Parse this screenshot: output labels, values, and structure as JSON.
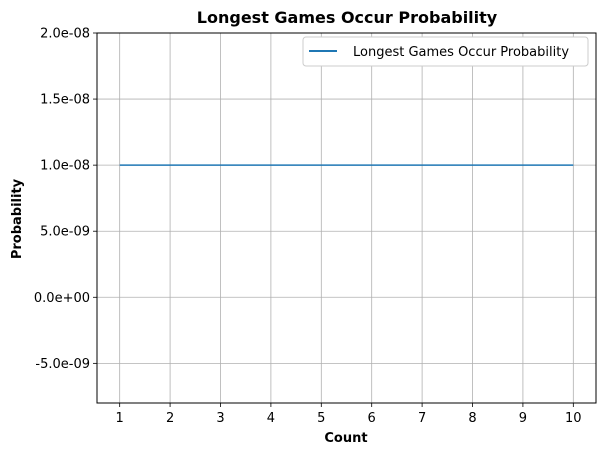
{
  "chart_data": {
    "type": "line",
    "title": "Longest Games Occur Probability",
    "xlabel": "Count",
    "ylabel": "Probability",
    "x": [
      1,
      2,
      3,
      4,
      5,
      6,
      7,
      8,
      9,
      10
    ],
    "series": [
      {
        "name": "Longest Games Occur Probability",
        "values": [
          1e-08,
          1e-08,
          1e-08,
          1e-08,
          1e-08,
          1e-08,
          1e-08,
          1e-08,
          1e-08,
          1e-08
        ],
        "color": "#1f77b4"
      }
    ],
    "xlim": [
      0.55,
      10.45
    ],
    "ylim": [
      -8e-09,
      2e-08
    ],
    "xticks": [
      1,
      2,
      3,
      4,
      5,
      6,
      7,
      8,
      9,
      10
    ],
    "xtick_labels": [
      "1",
      "2",
      "3",
      "4",
      "5",
      "6",
      "7",
      "8",
      "9",
      "10"
    ],
    "yticks": [
      -5e-09,
      0,
      5e-09,
      1e-08,
      1.5e-08,
      2e-08
    ],
    "ytick_labels": [
      "-5.0e-09",
      "0.0e+00",
      "5.0e-09",
      "1.0e-08",
      "1.5e-08",
      "2.0e-08"
    ],
    "grid": true,
    "legend_position": "top-right"
  }
}
